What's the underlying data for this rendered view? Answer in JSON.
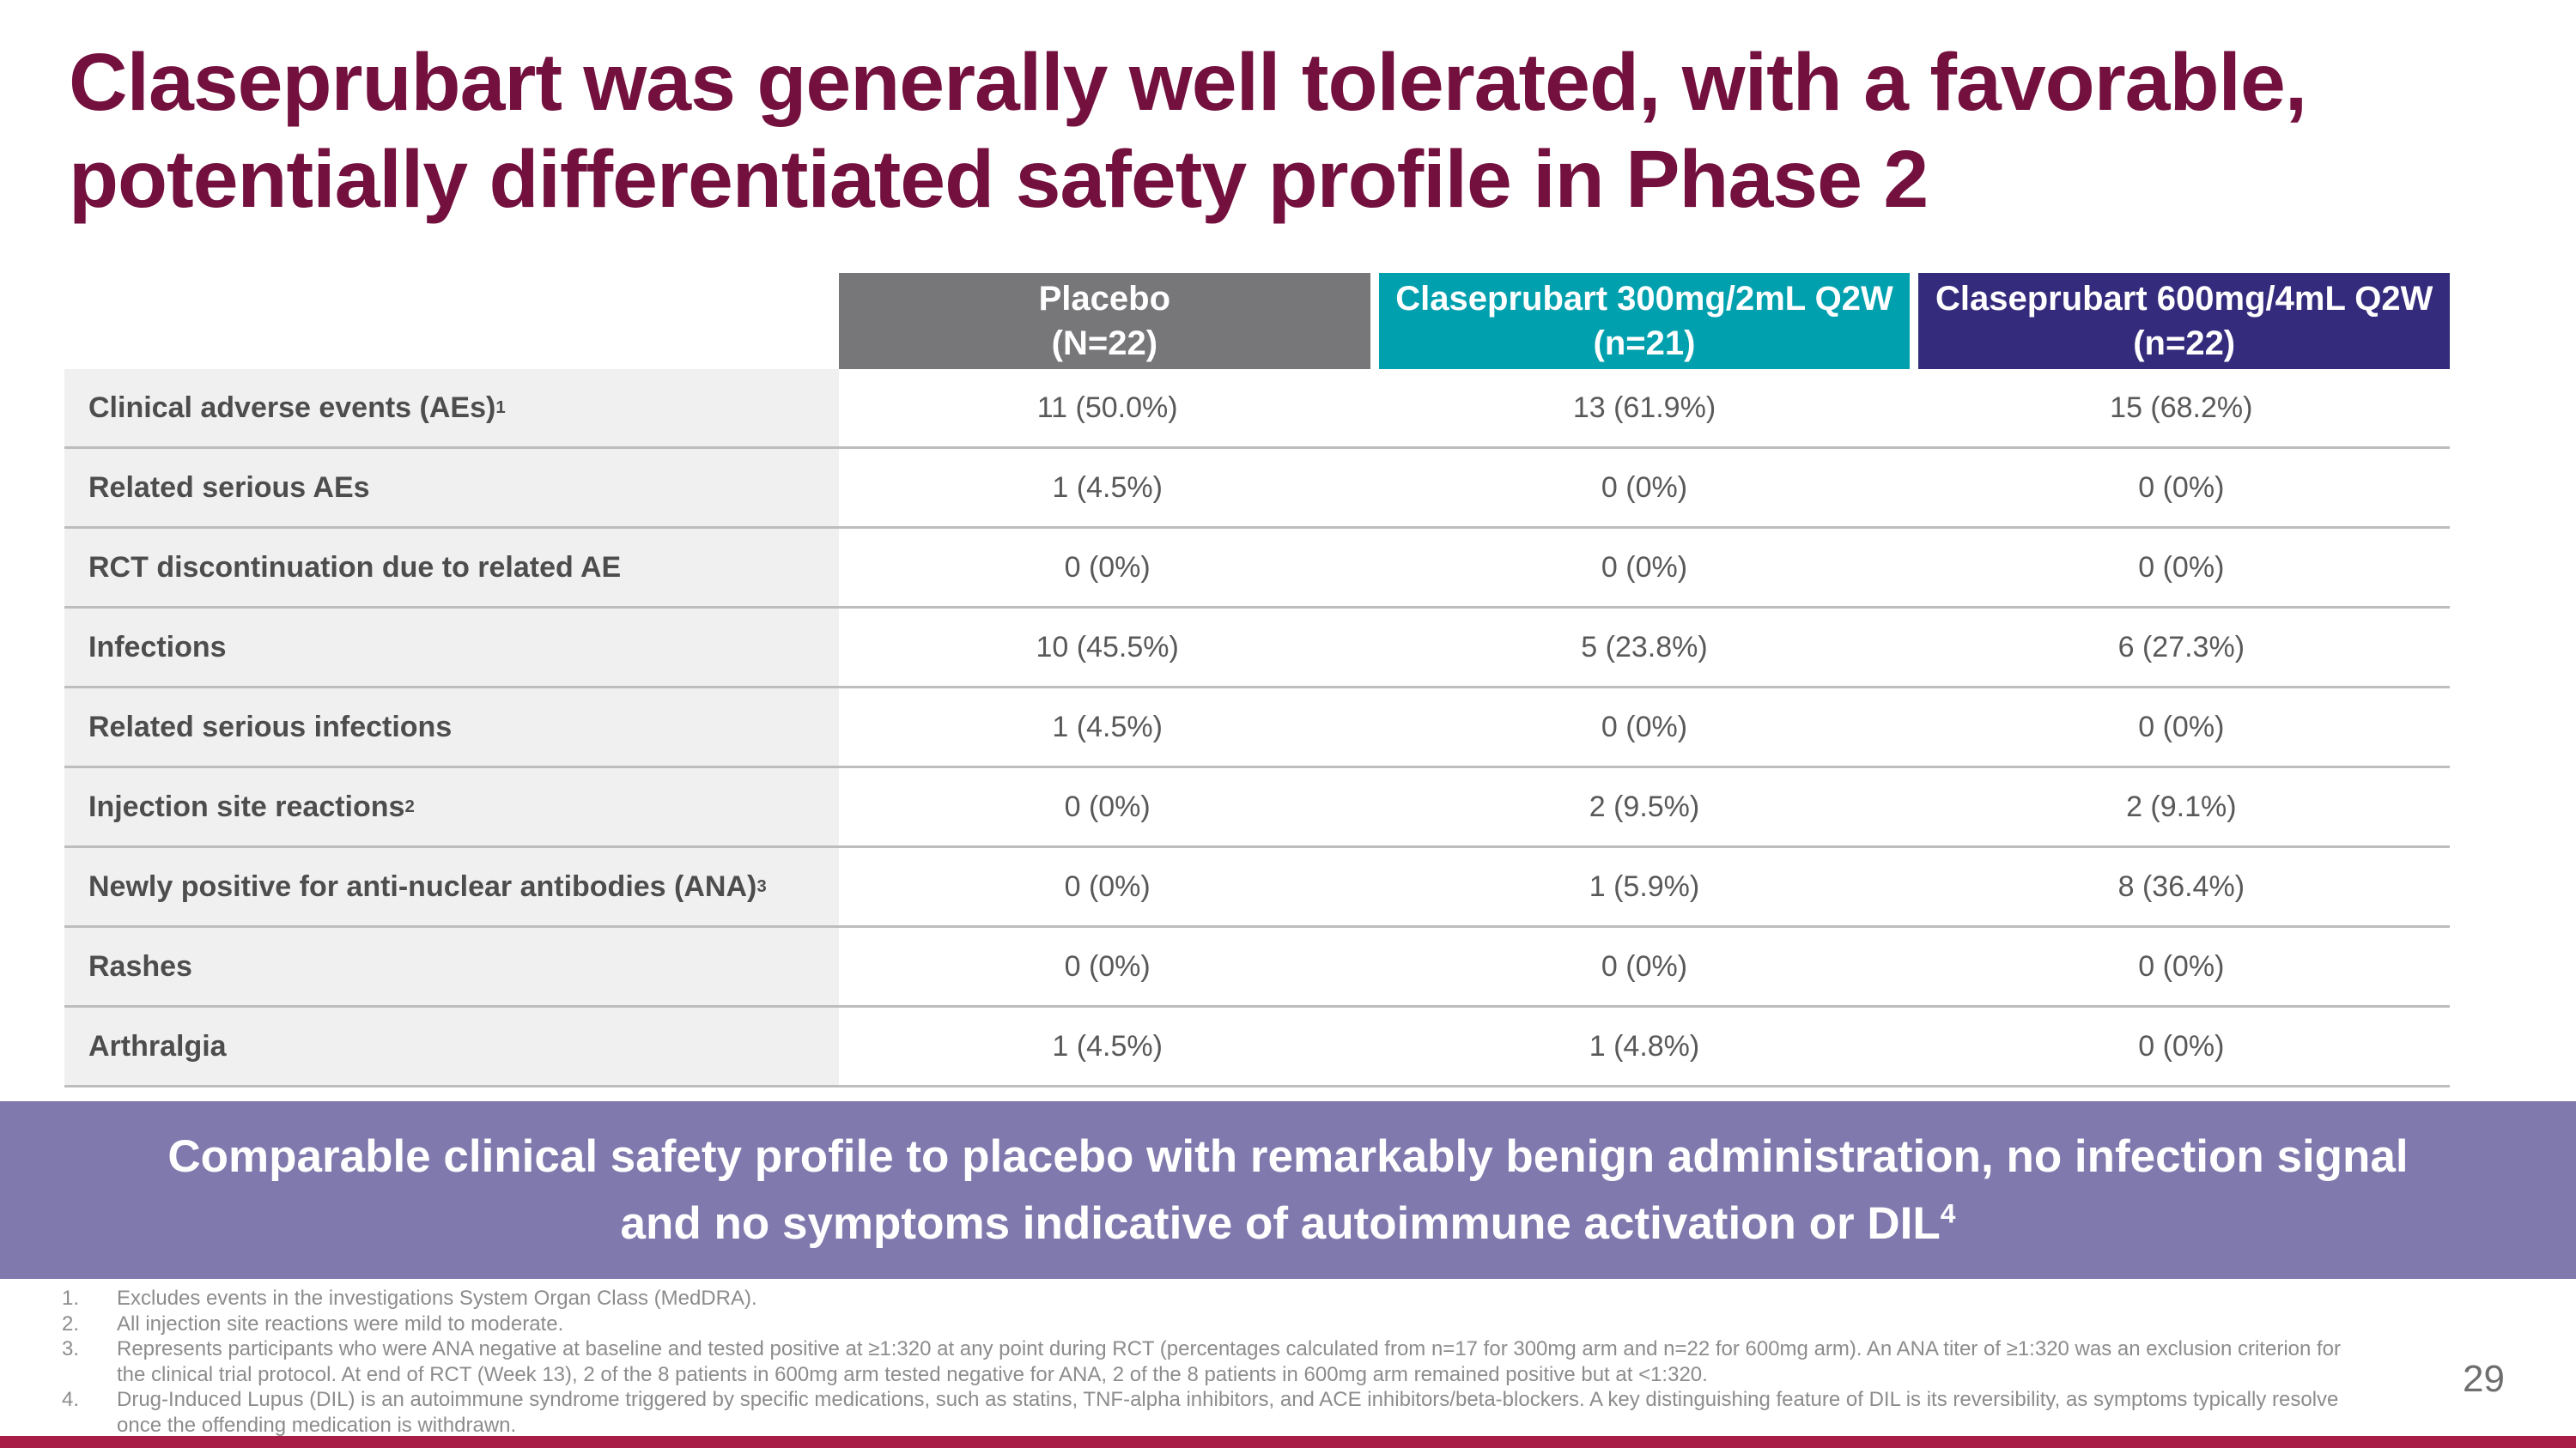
{
  "slide": {
    "title": {
      "line1": "Claseprubart was generally well tolerated, with a favorable,",
      "line2": "potentially differentiated safety profile in Phase 2"
    },
    "table": {
      "columns": [
        {
          "line1": "Placebo",
          "line2": "(N=22)",
          "color": "#77777A"
        },
        {
          "line1": "Claseprubart 300mg/2mL Q2W",
          "line2": "(n=21)",
          "color": "#00A0AE"
        },
        {
          "line1": "Claseprubart 600mg/4mL Q2W",
          "line2": "(n=22)",
          "color": "#342B7D"
        }
      ],
      "rows": [
        {
          "label": "Clinical adverse events (AEs)",
          "sup": "1",
          "values": [
            "11 (50.0%)",
            "13 (61.9%)",
            "15 (68.2%)"
          ]
        },
        {
          "label": "Related serious AEs",
          "sup": "",
          "values": [
            "1 (4.5%)",
            "0 (0%)",
            "0 (0%)"
          ]
        },
        {
          "label": "RCT discontinuation due to related AE",
          "sup": "",
          "values": [
            "0 (0%)",
            "0 (0%)",
            "0 (0%)"
          ]
        },
        {
          "label": "Infections",
          "sup": "",
          "values": [
            "10 (45.5%)",
            "5 (23.8%)",
            "6 (27.3%)"
          ]
        },
        {
          "label": "Related serious infections",
          "sup": "",
          "values": [
            "1 (4.5%)",
            "0 (0%)",
            "0 (0%)"
          ]
        },
        {
          "label": "Injection site reactions",
          "sup": "2",
          "values": [
            "0 (0%)",
            "2 (9.5%)",
            "2 (9.1%)"
          ]
        },
        {
          "label": "Newly positive for anti-nuclear antibodies (ANA)",
          "sup": "3",
          "values": [
            "0 (0%)",
            "1 (5.9%)",
            "8 (36.4%)"
          ]
        },
        {
          "label": "Rashes",
          "sup": "",
          "values": [
            "0 (0%)",
            "0 (0%)",
            "0 (0%)"
          ]
        },
        {
          "label": "Arthralgia",
          "sup": "",
          "values": [
            "1 (4.5%)",
            "1 (4.8%)",
            "0 (0%)"
          ]
        }
      ]
    },
    "banner": {
      "line1": "Comparable clinical safety profile to placebo with remarkably benign administration, no infection signal",
      "line2": "and no symptoms indicative of autoimmune activation or DIL",
      "sup": "4",
      "bg": "#8079AD"
    },
    "footnotes": [
      {
        "num": "1.",
        "text": "Excludes events in the investigations System Organ Class (MedDRA)."
      },
      {
        "num": "2.",
        "text": "All injection site reactions were mild to moderate."
      },
      {
        "num": "3.",
        "text": "Represents participants who were ANA negative at baseline and tested positive at ≥1:320 at any point during RCT (percentages calculated from n=17 for 300mg arm and n=22 for 600mg arm). An ANA titer of ≥1:320 was an exclusion criterion for the clinical trial protocol. At end of RCT (Week 13), 2 of the 8 patients in 600mg arm tested negative for ANA, 2 of the 8 patients in 600mg arm remained positive but at <1:320."
      },
      {
        "num": "4.",
        "text": "Drug-Induced Lupus (DIL) is an autoimmune syndrome triggered by specific medications, such as statins, TNF-alpha inhibitors, and ACE inhibitors/beta-blockers. A key distinguishing feature of DIL is its reversibility, as symptoms typically resolve once the offending medication is withdrawn."
      }
    ],
    "page_number": "29",
    "colors": {
      "title": "#73103E",
      "header_gray": "#77777A",
      "header_teal": "#00A0AE",
      "header_indigo": "#342B7D",
      "banner_purple": "#8079AD",
      "bottom_bar": "#A81D45",
      "label_bg": "#F0F0F0"
    }
  }
}
